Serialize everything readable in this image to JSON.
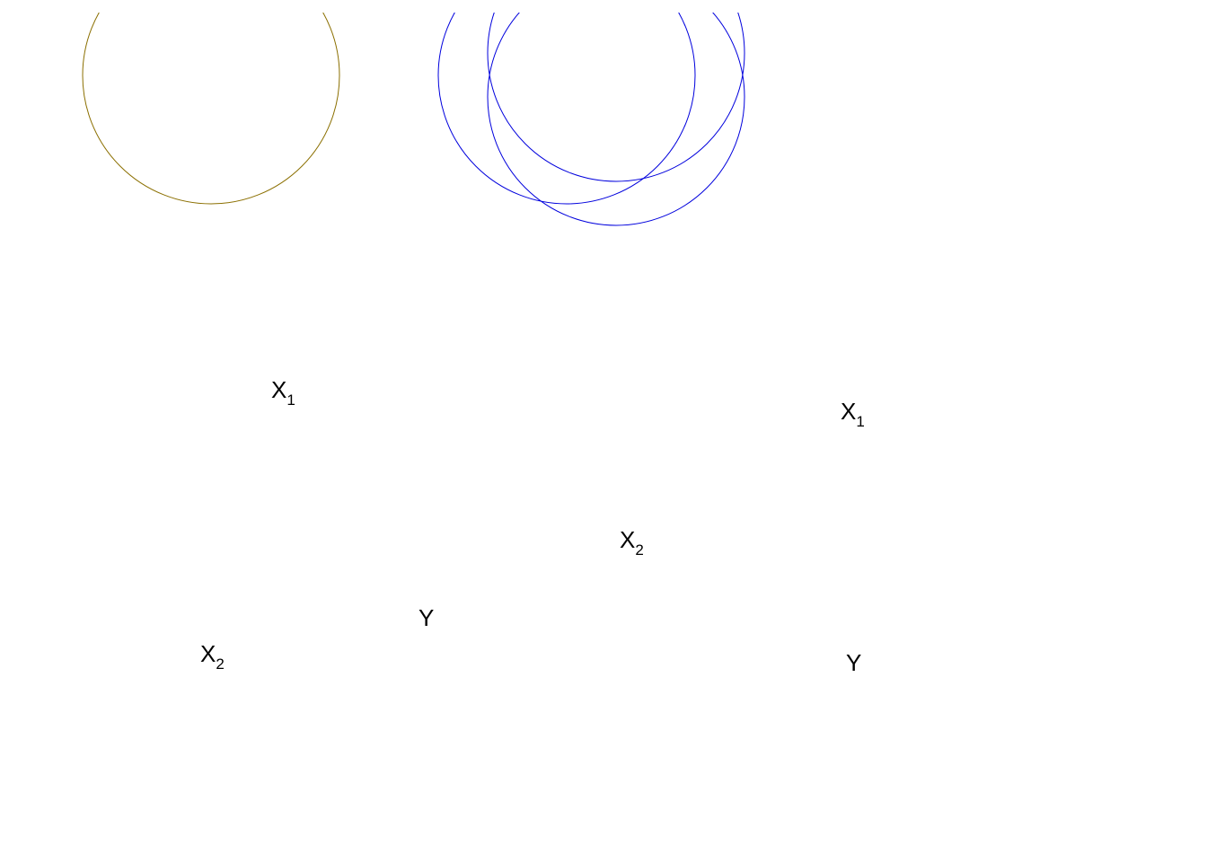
{
  "colors": {
    "left_circle": "#8b6f00",
    "right_circles": "#0000dd",
    "labels": "#000000",
    "background": "#ffffff"
  },
  "panels": [
    {
      "id": "left",
      "circle_count": 1,
      "labels": {
        "x1": {
          "base": "X",
          "sub": "1"
        },
        "x2": {
          "base": "X",
          "sub": "2"
        },
        "y": {
          "base": "Y",
          "sub": ""
        }
      }
    },
    {
      "id": "right",
      "circle_count": 3,
      "labels": {
        "x1": {
          "base": "X",
          "sub": "1"
        },
        "x2": {
          "base": "X",
          "sub": "2"
        },
        "y": {
          "base": "Y",
          "sub": ""
        }
      }
    }
  ]
}
